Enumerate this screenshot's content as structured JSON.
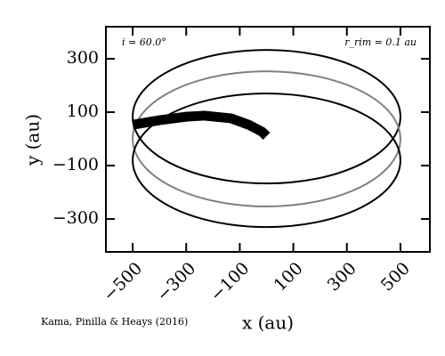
{
  "chart_data": {
    "type": "orbit",
    "xlabel": "x (au)",
    "ylabel": "y (au)",
    "annotations": [
      "i = 60.0°",
      "r_rim = 0.1 au",
      "Kama, Pinilla & Heays (2016)"
    ],
    "xlim": [
      -600,
      610
    ],
    "ylim": [
      -423,
      420
    ],
    "xticks": [
      {
        "value": -500,
        "label": "−500"
      },
      {
        "value": -300,
        "label": "−300"
      },
      {
        "value": -100,
        "label": "−100"
      },
      100,
      300,
      500
    ],
    "yticks": [
      300,
      100,
      {
        "value": -100,
        "label": "−100"
      },
      {
        "value": -300,
        "label": "−300"
      }
    ],
    "ellipses": [
      {
        "cx": 0,
        "cy": 83,
        "rx": 500,
        "ry": 250,
        "color": "#000000"
      },
      {
        "cx": 0,
        "cy": 0,
        "rx": 500,
        "ry": 253,
        "color": "#808080"
      },
      {
        "cx": 0,
        "cy": -80,
        "rx": 500,
        "ry": 250,
        "color": "#000000"
      }
    ],
    "trail": {
      "color": "#000000",
      "x": [
        -500,
        -400,
        -300,
        -233,
        -133,
        -67,
        -17,
        0
      ],
      "y": [
        53,
        70,
        83,
        87,
        77,
        53,
        27,
        10
      ]
    }
  }
}
